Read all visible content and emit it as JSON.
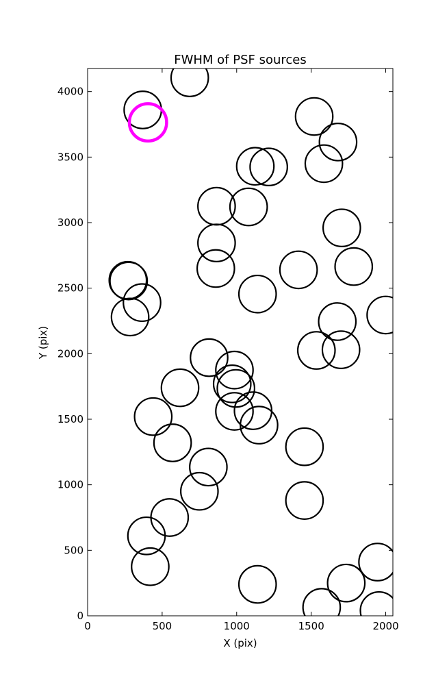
{
  "chart_data": {
    "type": "scatter",
    "title": "FWHM of PSF sources",
    "xlabel": "X (pix)",
    "ylabel": "Y (pix)",
    "xlim": [
      0,
      2048
    ],
    "ylim": [
      0,
      4176
    ],
    "xticks": [
      0,
      500,
      1000,
      1500,
      2000
    ],
    "yticks": [
      0,
      500,
      1000,
      1500,
      2000,
      2500,
      3000,
      3500,
      4000
    ],
    "grid": false,
    "marker_radius": 125,
    "series": [
      {
        "color": "#000000",
        "points": [
          {
            "x": 370,
            "y": 3860
          },
          {
            "x": 685,
            "y": 4105
          },
          {
            "x": 1125,
            "y": 3430
          },
          {
            "x": 1215,
            "y": 3425
          },
          {
            "x": 1520,
            "y": 3810
          },
          {
            "x": 1680,
            "y": 3615
          },
          {
            "x": 1585,
            "y": 3450
          },
          {
            "x": 865,
            "y": 3125
          },
          {
            "x": 1080,
            "y": 3120
          },
          {
            "x": 1705,
            "y": 2960
          },
          {
            "x": 865,
            "y": 2845
          },
          {
            "x": 860,
            "y": 2650
          },
          {
            "x": 1415,
            "y": 2640
          },
          {
            "x": 1785,
            "y": 2665
          },
          {
            "x": 270,
            "y": 2560
          },
          {
            "x": 275,
            "y": 2555
          },
          {
            "x": 365,
            "y": 2390
          },
          {
            "x": 285,
            "y": 2280
          },
          {
            "x": 1140,
            "y": 2455
          },
          {
            "x": 2000,
            "y": 2295
          },
          {
            "x": 1675,
            "y": 2245
          },
          {
            "x": 1535,
            "y": 2025
          },
          {
            "x": 1700,
            "y": 2030
          },
          {
            "x": 815,
            "y": 1970
          },
          {
            "x": 985,
            "y": 1875
          },
          {
            "x": 970,
            "y": 1770
          },
          {
            "x": 995,
            "y": 1735
          },
          {
            "x": 620,
            "y": 1740
          },
          {
            "x": 440,
            "y": 1520
          },
          {
            "x": 985,
            "y": 1560
          },
          {
            "x": 1110,
            "y": 1565
          },
          {
            "x": 1150,
            "y": 1455
          },
          {
            "x": 570,
            "y": 1320
          },
          {
            "x": 1455,
            "y": 1290
          },
          {
            "x": 810,
            "y": 1135
          },
          {
            "x": 750,
            "y": 950
          },
          {
            "x": 550,
            "y": 750
          },
          {
            "x": 1455,
            "y": 880
          },
          {
            "x": 395,
            "y": 610
          },
          {
            "x": 420,
            "y": 375
          },
          {
            "x": 1140,
            "y": 240
          },
          {
            "x": 1570,
            "y": 65
          },
          {
            "x": 1735,
            "y": 250
          },
          {
            "x": 1945,
            "y": 410
          },
          {
            "x": 1955,
            "y": 40
          }
        ]
      },
      {
        "color": "#ff00ff",
        "points": [
          {
            "x": 405,
            "y": 3765
          }
        ]
      }
    ]
  }
}
